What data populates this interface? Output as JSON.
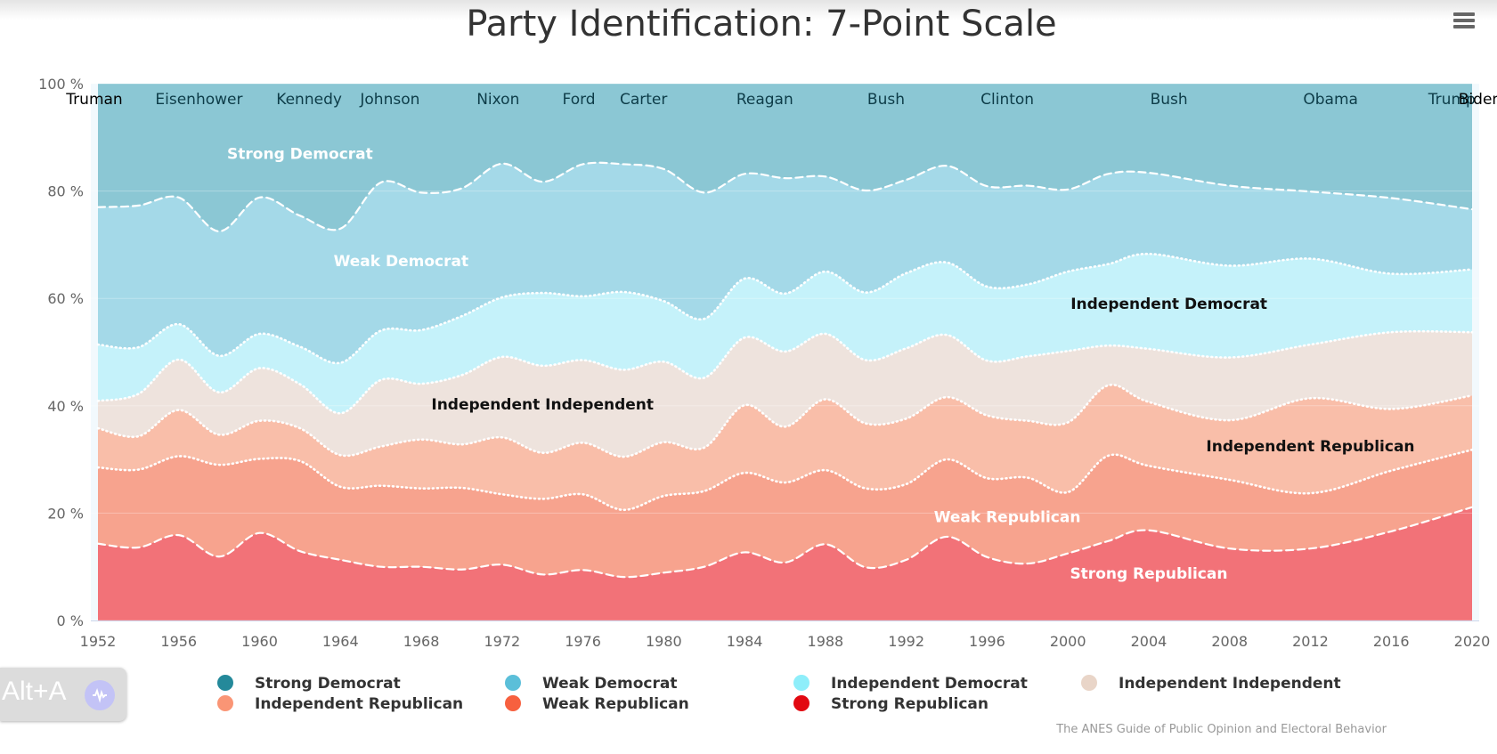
{
  "title": "Party Identification: 7-Point Scale",
  "menu": {
    "icon": "hamburger-menu-icon"
  },
  "credits": "The ANES Guide of Public Opinion and Electoral Behavior",
  "alt_badge": {
    "text": "Alt+A",
    "icon": "audio-wave-icon"
  },
  "chart_data": {
    "type": "area",
    "stacking": "percent",
    "x": [
      1952,
      1954,
      1956,
      1958,
      1960,
      1962,
      1964,
      1966,
      1968,
      1970,
      1972,
      1974,
      1976,
      1978,
      1980,
      1982,
      1984,
      1986,
      1988,
      1990,
      1992,
      1994,
      1996,
      1998,
      2000,
      2002,
      2004,
      2008,
      2012,
      2016,
      2020
    ],
    "series": [
      {
        "name": "Strong Republican",
        "color": "#f27278",
        "values": [
          14.3,
          13.6,
          15.9,
          11.9,
          16.3,
          12.9,
          11.3,
          10.0,
          10.0,
          9.5,
          10.4,
          8.4,
          9.4,
          8.1,
          8.9,
          10.0,
          12.7,
          10.8,
          14.2,
          9.9,
          11.3,
          15.6,
          11.8,
          10.6,
          12.5,
          14.8,
          16.8,
          13.4,
          13.4,
          16.6,
          21.1
        ]
      },
      {
        "name": "Weak Republican",
        "color": "#f7a38e",
        "values": [
          14.2,
          14.5,
          14.7,
          17.1,
          13.8,
          16.8,
          13.6,
          15.1,
          14.6,
          15.2,
          13.1,
          13.8,
          14.1,
          12.5,
          14.3,
          14.1,
          14.8,
          14.9,
          13.8,
          14.7,
          14.1,
          14.4,
          14.7,
          16.0,
          11.4,
          15.9,
          12.0,
          12.8,
          10.3,
          11.3,
          10.7
        ]
      },
      {
        "name": "Independent Republican",
        "color": "#f9bea9",
        "values": [
          7.3,
          6.2,
          8.6,
          5.6,
          7.1,
          6.1,
          5.9,
          7.3,
          9.1,
          8.1,
          10.6,
          8.4,
          9.6,
          9.9,
          10.0,
          8.1,
          12.6,
          10.4,
          13.2,
          12.1,
          12.2,
          11.6,
          11.7,
          10.6,
          13.0,
          13.1,
          11.9,
          11.1,
          17.7,
          11.5,
          10.1
        ]
      },
      {
        "name": "Independent Independent",
        "color": "#eee3dd",
        "values": [
          5.1,
          7.9,
          9.4,
          7.9,
          9.8,
          8.2,
          7.8,
          12.4,
          10.4,
          12.9,
          15.0,
          15.9,
          15.4,
          16.2,
          15.0,
          13.0,
          12.6,
          14.0,
          12.2,
          11.8,
          13.1,
          11.6,
          10.2,
          12.0,
          13.3,
          7.4,
          9.9,
          11.7,
          10.0,
          14.3,
          11.8
        ]
      },
      {
        "name": "Independent Democrat",
        "color": "#c5f2fa",
        "values": [
          10.5,
          8.7,
          6.6,
          6.8,
          6.4,
          7.0,
          9.4,
          9.2,
          10.0,
          11.0,
          11.1,
          13.3,
          11.9,
          14.5,
          11.3,
          11.0,
          11.0,
          10.8,
          11.6,
          12.6,
          14.0,
          13.5,
          13.8,
          13.4,
          14.8,
          15.2,
          17.7,
          17.1,
          16.0,
          10.9,
          11.7
        ]
      },
      {
        "name": "Weak Democrat",
        "color": "#a4d9e8",
        "values": [
          25.6,
          26.4,
          23.6,
          23.2,
          25.4,
          24.4,
          25.0,
          27.6,
          25.6,
          23.8,
          24.9,
          20.3,
          24.6,
          23.8,
          24.6,
          23.5,
          19.5,
          21.5,
          17.7,
          19.0,
          17.4,
          18.0,
          18.7,
          18.4,
          15.3,
          16.8,
          15.1,
          14.9,
          12.5,
          14.1,
          11.2
        ]
      },
      {
        "name": "Strong Democrat",
        "color": "#8bc7d4",
        "values": [
          23.0,
          22.7,
          21.2,
          27.5,
          21.2,
          24.6,
          27.0,
          18.4,
          20.3,
          19.5,
          14.9,
          17.9,
          15.0,
          15.0,
          15.9,
          20.3,
          16.8,
          17.6,
          17.3,
          19.9,
          17.9,
          15.3,
          19.1,
          19.0,
          19.7,
          16.8,
          16.6,
          19.0,
          20.1,
          21.3,
          23.4
        ]
      }
    ],
    "xlim": [
      1952,
      2020
    ],
    "ylim": [
      0,
      100
    ],
    "x_ticks": [
      "1952",
      "1956",
      "1960",
      "1964",
      "1968",
      "1972",
      "1976",
      "1980",
      "1984",
      "1988",
      "1992",
      "1996",
      "2000",
      "2004",
      "2008",
      "2012",
      "2016",
      "2020"
    ],
    "y_ticks": [
      "0 %",
      "20 %",
      "40 %",
      "60 %",
      "80 %",
      "100 %"
    ],
    "grid": true,
    "legend_position": "bottom",
    "legend_order": [
      "Strong Democrat",
      "Weak Democrat",
      "Independent Democrat",
      "Independent Independent",
      "Independent Republican",
      "Weak Republican",
      "Strong Republican"
    ],
    "legend_colors": [
      "#24899a",
      "#5bbfd9",
      "#8eeefa",
      "#e9d5c8",
      "#fa9575",
      "#f7603f",
      "#e20911"
    ],
    "series_labels": [
      {
        "text": "Strong Democrat",
        "x": 1962,
        "y": 87,
        "color": "#ffffff"
      },
      {
        "text": "Weak Democrat",
        "x": 1967,
        "y": 67,
        "color": "#ffffff"
      },
      {
        "text": "Independent Democrat",
        "x": 2005,
        "y": 59,
        "color": "#111111"
      },
      {
        "text": "Independent Independent",
        "x": 1974,
        "y": 40.3,
        "color": "#111111"
      },
      {
        "text": "Independent Republican",
        "x": 2012,
        "y": 32.5,
        "color": "#111111"
      },
      {
        "text": "Weak Republican",
        "x": 1997,
        "y": 19.3,
        "color": "#ffffff"
      },
      {
        "text": "Strong Republican",
        "x": 2004,
        "y": 8.8,
        "color": "#ffffff"
      }
    ],
    "presidents": [
      {
        "name": "Truman",
        "start": 1952,
        "end": 1953
      },
      {
        "name": "Eisenhower",
        "start": 1953,
        "end": 1961
      },
      {
        "name": "Kennedy",
        "start": 1961,
        "end": 1963.9
      },
      {
        "name": "Johnson",
        "start": 1963.9,
        "end": 1969
      },
      {
        "name": "Nixon",
        "start": 1969,
        "end": 1974.6
      },
      {
        "name": "Ford",
        "start": 1974.6,
        "end": 1977
      },
      {
        "name": "Carter",
        "start": 1977,
        "end": 1981
      },
      {
        "name": "Reagan",
        "start": 1981,
        "end": 1989
      },
      {
        "name": "Bush",
        "start": 1989,
        "end": 1993
      },
      {
        "name": "Clinton",
        "start": 1993,
        "end": 2001
      },
      {
        "name": "Bush",
        "start": 2001,
        "end": 2009
      },
      {
        "name": "Obama",
        "start": 2009,
        "end": 2017
      },
      {
        "name": "Trump",
        "start": 2017,
        "end": 2021
      },
      {
        "name": "Biden",
        "start": 2021,
        "end": 2022
      }
    ]
  }
}
